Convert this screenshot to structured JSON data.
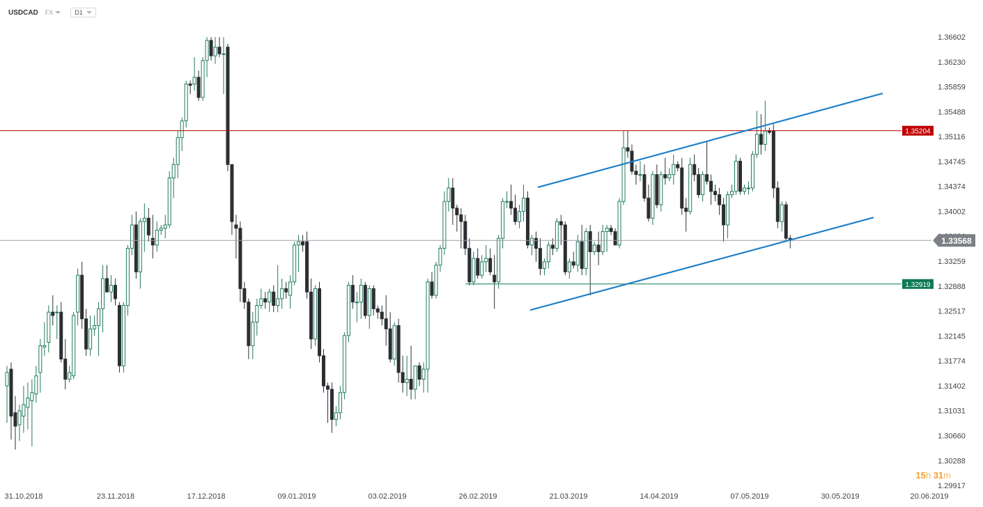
{
  "header": {
    "symbol": "USDCAD",
    "market": "FX",
    "timeframe": "D1"
  },
  "countdown": {
    "hours": "15",
    "h_unit": "h",
    "minutes": "31",
    "m_unit": "m"
  },
  "chart_data": {
    "type": "candlestick",
    "title": "USDCAD",
    "y_ticks": [
      "1.36602",
      "1.36230",
      "1.35859",
      "1.35488",
      "1.35116",
      "1.34745",
      "1.34374",
      "1.34002",
      "1.33631",
      "1.33259",
      "1.32888",
      "1.32517",
      "1.32145",
      "1.31774",
      "1.31402",
      "1.31031",
      "1.30660",
      "1.30288",
      "1.29917"
    ],
    "ylim": [
      1.29917,
      1.36602
    ],
    "x_ticks": [
      "31.10.2018",
      "23.11.2018",
      "17.12.2018",
      "09.01.2019",
      "03.02.2019",
      "26.02.2019",
      "21.03.2019",
      "14.04.2019",
      "07.05.2019",
      "30.05.2019",
      "20.06.2019"
    ],
    "current_price": "1.33568",
    "horizontal_levels": [
      {
        "value": "1.35204",
        "color": "#c00000"
      },
      {
        "value": "1.32919",
        "color": "#0e7a55"
      }
    ],
    "channel_lines": [
      {
        "name": "upper",
        "from": [
          "13.03.2019",
          1.3436
        ],
        "to": [
          "14.06.2019",
          1.3576
        ]
      },
      {
        "name": "lower",
        "from": [
          "12.03.2019",
          1.3253
        ],
        "to": [
          "12.06.2019",
          1.3391
        ]
      }
    ],
    "candles": [
      {
        "o": 1.314,
        "h": 1.317,
        "l": 1.3085,
        "c": 1.316
      },
      {
        "o": 1.3165,
        "h": 1.3175,
        "l": 1.306,
        "c": 1.3095
      },
      {
        "o": 1.31,
        "h": 1.3125,
        "l": 1.3045,
        "c": 1.308
      },
      {
        "o": 1.3082,
        "h": 1.3112,
        "l": 1.3058,
        "c": 1.3103
      },
      {
        "o": 1.3095,
        "h": 1.314,
        "l": 1.307,
        "c": 1.3112
      },
      {
        "o": 1.3108,
        "h": 1.3145,
        "l": 1.3075,
        "c": 1.3122
      },
      {
        "o": 1.3118,
        "h": 1.315,
        "l": 1.305,
        "c": 1.313
      },
      {
        "o": 1.3128,
        "h": 1.317,
        "l": 1.3115,
        "c": 1.3155
      },
      {
        "o": 1.316,
        "h": 1.321,
        "l": 1.313,
        "c": 1.32
      },
      {
        "o": 1.3198,
        "h": 1.3235,
        "l": 1.3185,
        "c": 1.32
      },
      {
        "o": 1.3205,
        "h": 1.326,
        "l": 1.319,
        "c": 1.325
      },
      {
        "o": 1.325,
        "h": 1.3275,
        "l": 1.323,
        "c": 1.3245
      },
      {
        "o": 1.325,
        "h": 1.326,
        "l": 1.321,
        "c": 1.325
      },
      {
        "o": 1.325,
        "h": 1.3265,
        "l": 1.3175,
        "c": 1.318
      },
      {
        "o": 1.318,
        "h": 1.321,
        "l": 1.3135,
        "c": 1.315
      },
      {
        "o": 1.315,
        "h": 1.317,
        "l": 1.3145,
        "c": 1.316
      },
      {
        "o": 1.3155,
        "h": 1.325,
        "l": 1.315,
        "c": 1.3245
      },
      {
        "o": 1.325,
        "h": 1.3315,
        "l": 1.323,
        "c": 1.3305
      },
      {
        "o": 1.3305,
        "h": 1.3325,
        "l": 1.3225,
        "c": 1.324
      },
      {
        "o": 1.324,
        "h": 1.3255,
        "l": 1.3185,
        "c": 1.3195
      },
      {
        "o": 1.3195,
        "h": 1.3245,
        "l": 1.3185,
        "c": 1.3225
      },
      {
        "o": 1.3225,
        "h": 1.3245,
        "l": 1.3215,
        "c": 1.323
      },
      {
        "o": 1.323,
        "h": 1.3265,
        "l": 1.3185,
        "c": 1.3255
      },
      {
        "o": 1.3255,
        "h": 1.332,
        "l": 1.322,
        "c": 1.33
      },
      {
        "o": 1.33,
        "h": 1.332,
        "l": 1.328,
        "c": 1.328
      },
      {
        "o": 1.328,
        "h": 1.3305,
        "l": 1.3265,
        "c": 1.329
      },
      {
        "o": 1.329,
        "h": 1.33,
        "l": 1.326,
        "c": 1.327
      },
      {
        "o": 1.326,
        "h": 1.3265,
        "l": 1.316,
        "c": 1.317
      },
      {
        "o": 1.317,
        "h": 1.3265,
        "l": 1.316,
        "c": 1.326
      },
      {
        "o": 1.326,
        "h": 1.335,
        "l": 1.3245,
        "c": 1.3345
      },
      {
        "o": 1.3345,
        "h": 1.3395,
        "l": 1.3335,
        "c": 1.338
      },
      {
        "o": 1.338,
        "h": 1.34,
        "l": 1.33,
        "c": 1.331
      },
      {
        "o": 1.331,
        "h": 1.339,
        "l": 1.3285,
        "c": 1.3385
      },
      {
        "o": 1.3385,
        "h": 1.3412,
        "l": 1.334,
        "c": 1.339
      },
      {
        "o": 1.339,
        "h": 1.3405,
        "l": 1.3355,
        "c": 1.3365
      },
      {
        "o": 1.336,
        "h": 1.3395,
        "l": 1.333,
        "c": 1.335
      },
      {
        "o": 1.335,
        "h": 1.3385,
        "l": 1.334,
        "c": 1.3372
      },
      {
        "o": 1.3372,
        "h": 1.338,
        "l": 1.3365,
        "c": 1.3375
      },
      {
        "o": 1.3375,
        "h": 1.3395,
        "l": 1.336,
        "c": 1.338
      },
      {
        "o": 1.338,
        "h": 1.346,
        "l": 1.3375,
        "c": 1.345
      },
      {
        "o": 1.345,
        "h": 1.348,
        "l": 1.342,
        "c": 1.347
      },
      {
        "o": 1.347,
        "h": 1.352,
        "l": 1.345,
        "c": 1.351
      },
      {
        "o": 1.351,
        "h": 1.354,
        "l": 1.349,
        "c": 1.3535
      },
      {
        "o": 1.3535,
        "h": 1.3595,
        "l": 1.3525,
        "c": 1.359
      },
      {
        "o": 1.359,
        "h": 1.3595,
        "l": 1.3575,
        "c": 1.3588
      },
      {
        "o": 1.359,
        "h": 1.363,
        "l": 1.358,
        "c": 1.36
      },
      {
        "o": 1.36,
        "h": 1.361,
        "l": 1.3565,
        "c": 1.357
      },
      {
        "o": 1.357,
        "h": 1.363,
        "l": 1.3565,
        "c": 1.3625
      },
      {
        "o": 1.3625,
        "h": 1.366,
        "l": 1.36,
        "c": 1.3655
      },
      {
        "o": 1.3655,
        "h": 1.366,
        "l": 1.3625,
        "c": 1.3632
      },
      {
        "o": 1.3632,
        "h": 1.366,
        "l": 1.362,
        "c": 1.3645
      },
      {
        "o": 1.3645,
        "h": 1.366,
        "l": 1.363,
        "c": 1.3635
      },
      {
        "o": 1.3635,
        "h": 1.366,
        "l": 1.3575,
        "c": 1.3635
      },
      {
        "o": 1.3645,
        "h": 1.365,
        "l": 1.346,
        "c": 1.347
      },
      {
        "o": 1.347,
        "h": 1.347,
        "l": 1.3365,
        "c": 1.3385
      },
      {
        "o": 1.338,
        "h": 1.3395,
        "l": 1.333,
        "c": 1.3375
      },
      {
        "o": 1.3375,
        "h": 1.3385,
        "l": 1.3265,
        "c": 1.3285
      },
      {
        "o": 1.3285,
        "h": 1.3295,
        "l": 1.3255,
        "c": 1.3265
      },
      {
        "o": 1.3265,
        "h": 1.327,
        "l": 1.318,
        "c": 1.32
      },
      {
        "o": 1.32,
        "h": 1.325,
        "l": 1.318,
        "c": 1.3235
      },
      {
        "o": 1.3235,
        "h": 1.327,
        "l": 1.3215,
        "c": 1.326
      },
      {
        "o": 1.326,
        "h": 1.3285,
        "l": 1.3255,
        "c": 1.327
      },
      {
        "o": 1.327,
        "h": 1.328,
        "l": 1.3255,
        "c": 1.3265
      },
      {
        "o": 1.3265,
        "h": 1.3285,
        "l": 1.325,
        "c": 1.328
      },
      {
        "o": 1.328,
        "h": 1.329,
        "l": 1.325,
        "c": 1.326
      },
      {
        "o": 1.326,
        "h": 1.332,
        "l": 1.325,
        "c": 1.327
      },
      {
        "o": 1.327,
        "h": 1.33,
        "l": 1.3255,
        "c": 1.3285
      },
      {
        "o": 1.3285,
        "h": 1.3295,
        "l": 1.327,
        "c": 1.328
      },
      {
        "o": 1.3275,
        "h": 1.3305,
        "l": 1.3255,
        "c": 1.3295
      },
      {
        "o": 1.3295,
        "h": 1.3355,
        "l": 1.329,
        "c": 1.335
      },
      {
        "o": 1.335,
        "h": 1.3365,
        "l": 1.331,
        "c": 1.3355
      },
      {
        "o": 1.3355,
        "h": 1.3365,
        "l": 1.334,
        "c": 1.335
      },
      {
        "o": 1.3355,
        "h": 1.337,
        "l": 1.327,
        "c": 1.328
      },
      {
        "o": 1.328,
        "h": 1.33,
        "l": 1.3195,
        "c": 1.321
      },
      {
        "o": 1.321,
        "h": 1.329,
        "l": 1.32,
        "c": 1.3285
      },
      {
        "o": 1.3285,
        "h": 1.3295,
        "l": 1.3175,
        "c": 1.3185
      },
      {
        "o": 1.3185,
        "h": 1.3195,
        "l": 1.313,
        "c": 1.314
      },
      {
        "o": 1.314,
        "h": 1.3145,
        "l": 1.3085,
        "c": 1.3135
      },
      {
        "o": 1.3135,
        "h": 1.3145,
        "l": 1.307,
        "c": 1.309
      },
      {
        "o": 1.309,
        "h": 1.311,
        "l": 1.308,
        "c": 1.31
      },
      {
        "o": 1.31,
        "h": 1.314,
        "l": 1.309,
        "c": 1.313
      },
      {
        "o": 1.313,
        "h": 1.322,
        "l": 1.312,
        "c": 1.3215
      },
      {
        "o": 1.3215,
        "h": 1.3295,
        "l": 1.3205,
        "c": 1.329
      },
      {
        "o": 1.329,
        "h": 1.3305,
        "l": 1.3255,
        "c": 1.3265
      },
      {
        "o": 1.3265,
        "h": 1.328,
        "l": 1.3235,
        "c": 1.3265
      },
      {
        "o": 1.3265,
        "h": 1.33,
        "l": 1.324,
        "c": 1.329
      },
      {
        "o": 1.329,
        "h": 1.3295,
        "l": 1.324,
        "c": 1.3245
      },
      {
        "o": 1.3245,
        "h": 1.329,
        "l": 1.3225,
        "c": 1.3285
      },
      {
        "o": 1.3285,
        "h": 1.329,
        "l": 1.3245,
        "c": 1.3255
      },
      {
        "o": 1.3255,
        "h": 1.326,
        "l": 1.324,
        "c": 1.325
      },
      {
        "o": 1.325,
        "h": 1.326,
        "l": 1.323,
        "c": 1.324
      },
      {
        "o": 1.324,
        "h": 1.3275,
        "l": 1.32,
        "c": 1.3225
      },
      {
        "o": 1.3225,
        "h": 1.325,
        "l": 1.3175,
        "c": 1.318
      },
      {
        "o": 1.318,
        "h": 1.3235,
        "l": 1.317,
        "c": 1.323
      },
      {
        "o": 1.323,
        "h": 1.324,
        "l": 1.3145,
        "c": 1.316
      },
      {
        "o": 1.316,
        "h": 1.3185,
        "l": 1.313,
        "c": 1.3145
      },
      {
        "o": 1.3145,
        "h": 1.3185,
        "l": 1.3125,
        "c": 1.315
      },
      {
        "o": 1.315,
        "h": 1.32,
        "l": 1.312,
        "c": 1.3135
      },
      {
        "o": 1.3135,
        "h": 1.317,
        "l": 1.312,
        "c": 1.317
      },
      {
        "o": 1.317,
        "h": 1.3175,
        "l": 1.314,
        "c": 1.315
      },
      {
        "o": 1.315,
        "h": 1.3175,
        "l": 1.313,
        "c": 1.3165
      },
      {
        "o": 1.3165,
        "h": 1.33,
        "l": 1.313,
        "c": 1.3295
      },
      {
        "o": 1.3295,
        "h": 1.331,
        "l": 1.327,
        "c": 1.3275
      },
      {
        "o": 1.3275,
        "h": 1.3325,
        "l": 1.327,
        "c": 1.332
      },
      {
        "o": 1.332,
        "h": 1.335,
        "l": 1.331,
        "c": 1.3345
      },
      {
        "o": 1.3345,
        "h": 1.343,
        "l": 1.3335,
        "c": 1.3415
      },
      {
        "o": 1.3415,
        "h": 1.345,
        "l": 1.34,
        "c": 1.3435
      },
      {
        "o": 1.3435,
        "h": 1.345,
        "l": 1.338,
        "c": 1.3405
      },
      {
        "o": 1.3405,
        "h": 1.341,
        "l": 1.337,
        "c": 1.3395
      },
      {
        "o": 1.3395,
        "h": 1.3405,
        "l": 1.3345,
        "c": 1.3385
      },
      {
        "o": 1.3385,
        "h": 1.3395,
        "l": 1.3335,
        "c": 1.3345
      },
      {
        "o": 1.3345,
        "h": 1.336,
        "l": 1.329,
        "c": 1.3295
      },
      {
        "o": 1.3295,
        "h": 1.334,
        "l": 1.329,
        "c": 1.333
      },
      {
        "o": 1.333,
        "h": 1.3345,
        "l": 1.33,
        "c": 1.3305
      },
      {
        "o": 1.3305,
        "h": 1.3335,
        "l": 1.33,
        "c": 1.3325
      },
      {
        "o": 1.3325,
        "h": 1.335,
        "l": 1.331,
        "c": 1.333
      },
      {
        "o": 1.333,
        "h": 1.3345,
        "l": 1.3305,
        "c": 1.331
      },
      {
        "o": 1.3305,
        "h": 1.3335,
        "l": 1.3255,
        "c": 1.3295
      },
      {
        "o": 1.3295,
        "h": 1.3365,
        "l": 1.3285,
        "c": 1.336
      },
      {
        "o": 1.336,
        "h": 1.342,
        "l": 1.3345,
        "c": 1.3415
      },
      {
        "o": 1.3415,
        "h": 1.343,
        "l": 1.3405,
        "c": 1.3415
      },
      {
        "o": 1.3415,
        "h": 1.344,
        "l": 1.3395,
        "c": 1.3405
      },
      {
        "o": 1.3405,
        "h": 1.3425,
        "l": 1.338,
        "c": 1.3385
      },
      {
        "o": 1.3385,
        "h": 1.341,
        "l": 1.3375,
        "c": 1.34
      },
      {
        "o": 1.34,
        "h": 1.344,
        "l": 1.3385,
        "c": 1.342
      },
      {
        "o": 1.342,
        "h": 1.343,
        "l": 1.3345,
        "c": 1.335
      },
      {
        "o": 1.335,
        "h": 1.3365,
        "l": 1.3335,
        "c": 1.336
      },
      {
        "o": 1.336,
        "h": 1.337,
        "l": 1.3325,
        "c": 1.3345
      },
      {
        "o": 1.3345,
        "h": 1.336,
        "l": 1.3305,
        "c": 1.3315
      },
      {
        "o": 1.3315,
        "h": 1.333,
        "l": 1.3305,
        "c": 1.3325
      },
      {
        "o": 1.3325,
        "h": 1.3355,
        "l": 1.3315,
        "c": 1.335
      },
      {
        "o": 1.335,
        "h": 1.336,
        "l": 1.3335,
        "c": 1.3345
      },
      {
        "o": 1.3345,
        "h": 1.339,
        "l": 1.334,
        "c": 1.3385
      },
      {
        "o": 1.3385,
        "h": 1.3395,
        "l": 1.335,
        "c": 1.338
      },
      {
        "o": 1.338,
        "h": 1.3385,
        "l": 1.3305,
        "c": 1.331
      },
      {
        "o": 1.331,
        "h": 1.333,
        "l": 1.33,
        "c": 1.3325
      },
      {
        "o": 1.3325,
        "h": 1.334,
        "l": 1.3315,
        "c": 1.332
      },
      {
        "o": 1.332,
        "h": 1.3365,
        "l": 1.331,
        "c": 1.3355
      },
      {
        "o": 1.3355,
        "h": 1.338,
        "l": 1.3305,
        "c": 1.3315
      },
      {
        "o": 1.3315,
        "h": 1.3375,
        "l": 1.3305,
        "c": 1.337
      },
      {
        "o": 1.337,
        "h": 1.338,
        "l": 1.3275,
        "c": 1.334
      },
      {
        "o": 1.334,
        "h": 1.3355,
        "l": 1.3335,
        "c": 1.335
      },
      {
        "o": 1.335,
        "h": 1.337,
        "l": 1.332,
        "c": 1.334
      },
      {
        "o": 1.334,
        "h": 1.338,
        "l": 1.3335,
        "c": 1.337
      },
      {
        "o": 1.337,
        "h": 1.338,
        "l": 1.334,
        "c": 1.3375
      },
      {
        "o": 1.3375,
        "h": 1.338,
        "l": 1.3365,
        "c": 1.337
      },
      {
        "o": 1.337,
        "h": 1.3375,
        "l": 1.335,
        "c": 1.335
      },
      {
        "o": 1.335,
        "h": 1.342,
        "l": 1.3345,
        "c": 1.3415
      },
      {
        "o": 1.3415,
        "h": 1.352,
        "l": 1.341,
        "c": 1.3495
      },
      {
        "o": 1.3495,
        "h": 1.352,
        "l": 1.348,
        "c": 1.349
      },
      {
        "o": 1.349,
        "h": 1.35,
        "l": 1.3455,
        "c": 1.346
      },
      {
        "o": 1.346,
        "h": 1.347,
        "l": 1.344,
        "c": 1.3455
      },
      {
        "o": 1.3455,
        "h": 1.3475,
        "l": 1.3445,
        "c": 1.3455
      },
      {
        "o": 1.3455,
        "h": 1.347,
        "l": 1.3415,
        "c": 1.342
      },
      {
        "o": 1.342,
        "h": 1.344,
        "l": 1.3385,
        "c": 1.339
      },
      {
        "o": 1.339,
        "h": 1.346,
        "l": 1.338,
        "c": 1.3455
      },
      {
        "o": 1.3455,
        "h": 1.347,
        "l": 1.3405,
        "c": 1.341
      },
      {
        "o": 1.341,
        "h": 1.346,
        "l": 1.34,
        "c": 1.3455
      },
      {
        "o": 1.3455,
        "h": 1.348,
        "l": 1.344,
        "c": 1.345
      },
      {
        "o": 1.345,
        "h": 1.3465,
        "l": 1.3445,
        "c": 1.3455
      },
      {
        "o": 1.3455,
        "h": 1.3485,
        "l": 1.344,
        "c": 1.347
      },
      {
        "o": 1.347,
        "h": 1.3475,
        "l": 1.346,
        "c": 1.3465
      },
      {
        "o": 1.3465,
        "h": 1.348,
        "l": 1.3395,
        "c": 1.3405
      },
      {
        "o": 1.3405,
        "h": 1.342,
        "l": 1.337,
        "c": 1.34
      },
      {
        "o": 1.34,
        "h": 1.348,
        "l": 1.3395,
        "c": 1.347
      },
      {
        "o": 1.347,
        "h": 1.3485,
        "l": 1.3445,
        "c": 1.3455
      },
      {
        "o": 1.3455,
        "h": 1.3465,
        "l": 1.342,
        "c": 1.3425
      },
      {
        "o": 1.3425,
        "h": 1.346,
        "l": 1.3415,
        "c": 1.3455
      },
      {
        "o": 1.3455,
        "h": 1.3505,
        "l": 1.344,
        "c": 1.3445
      },
      {
        "o": 1.3445,
        "h": 1.3455,
        "l": 1.341,
        "c": 1.343
      },
      {
        "o": 1.343,
        "h": 1.344,
        "l": 1.3415,
        "c": 1.3425
      },
      {
        "o": 1.3425,
        "h": 1.3435,
        "l": 1.3395,
        "c": 1.341
      },
      {
        "o": 1.341,
        "h": 1.342,
        "l": 1.3355,
        "c": 1.338
      },
      {
        "o": 1.338,
        "h": 1.343,
        "l": 1.336,
        "c": 1.3425
      },
      {
        "o": 1.3425,
        "h": 1.344,
        "l": 1.342,
        "c": 1.343
      },
      {
        "o": 1.343,
        "h": 1.3485,
        "l": 1.3425,
        "c": 1.3475
      },
      {
        "o": 1.3475,
        "h": 1.348,
        "l": 1.3425,
        "c": 1.343
      },
      {
        "o": 1.343,
        "h": 1.344,
        "l": 1.3425,
        "c": 1.3435
      },
      {
        "o": 1.3435,
        "h": 1.3445,
        "l": 1.3425,
        "c": 1.3435
      },
      {
        "o": 1.3435,
        "h": 1.349,
        "l": 1.343,
        "c": 1.3485
      },
      {
        "o": 1.3485,
        "h": 1.355,
        "l": 1.348,
        "c": 1.3515
      },
      {
        "o": 1.3515,
        "h": 1.3545,
        "l": 1.3485,
        "c": 1.35
      },
      {
        "o": 1.35,
        "h": 1.3565,
        "l": 1.349,
        "c": 1.352
      },
      {
        "o": 1.352,
        "h": 1.3525,
        "l": 1.3515,
        "c": 1.3518
      },
      {
        "o": 1.352,
        "h": 1.353,
        "l": 1.342,
        "c": 1.3435
      },
      {
        "o": 1.3435,
        "h": 1.3445,
        "l": 1.3375,
        "c": 1.3385
      },
      {
        "o": 1.3385,
        "h": 1.3415,
        "l": 1.337,
        "c": 1.341
      },
      {
        "o": 1.341,
        "h": 1.3415,
        "l": 1.3355,
        "c": 1.336
      },
      {
        "o": 1.336,
        "h": 1.3365,
        "l": 1.3345,
        "c": 1.3357
      }
    ]
  }
}
